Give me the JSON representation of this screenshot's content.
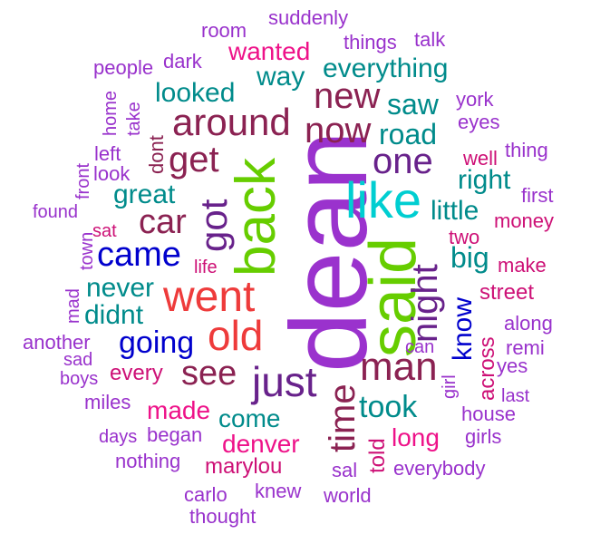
{
  "words": [
    {
      "text": "dean",
      "color": "#9a32cd",
      "rotated": true
    },
    {
      "text": "said",
      "color": "#66cd00",
      "rotated": true
    },
    {
      "text": "back",
      "color": "#66cd00",
      "rotated": true
    },
    {
      "text": "like",
      "color": "#00ced1"
    },
    {
      "text": "went",
      "color": "#ee3b3b"
    },
    {
      "text": "night",
      "color": "#68228b",
      "rotated": true
    },
    {
      "text": "around",
      "color": "#8b2252"
    },
    {
      "text": "time",
      "color": "#8b2252",
      "rotated": true
    },
    {
      "text": "old",
      "color": "#ee3b3b"
    },
    {
      "text": "got",
      "color": "#68228b",
      "rotated": true
    },
    {
      "text": "just",
      "color": "#68228b"
    },
    {
      "text": "man",
      "color": "#8b2252"
    },
    {
      "text": "new",
      "color": "#8b2252"
    },
    {
      "text": "now",
      "color": "#8b2252"
    },
    {
      "text": "one",
      "color": "#68228b"
    },
    {
      "text": "get",
      "color": "#8b2252"
    },
    {
      "text": "car",
      "color": "#8b2252"
    },
    {
      "text": "see",
      "color": "#8b2252"
    },
    {
      "text": "came",
      "color": "#0000cd"
    },
    {
      "text": "going",
      "color": "#0000cd"
    },
    {
      "text": "road",
      "color": "#008b8b"
    },
    {
      "text": "took",
      "color": "#008b8b"
    },
    {
      "text": "great",
      "color": "#008b8b"
    },
    {
      "text": "little",
      "color": "#008b8b"
    },
    {
      "text": "right",
      "color": "#008b8b"
    },
    {
      "text": "big",
      "color": "#008b8b"
    },
    {
      "text": "know",
      "color": "#0000cd",
      "rotated": true
    },
    {
      "text": "looked",
      "color": "#008b8b"
    },
    {
      "text": "way",
      "color": "#008b8b"
    },
    {
      "text": "saw",
      "color": "#008b8b"
    },
    {
      "text": "everything",
      "color": "#008b8b"
    },
    {
      "text": "never",
      "color": "#008b8b"
    },
    {
      "text": "didnt",
      "color": "#008b8b"
    },
    {
      "text": "come",
      "color": "#008b8b"
    },
    {
      "text": "wanted",
      "color": "#ee1289"
    },
    {
      "text": "denver",
      "color": "#ee1289"
    },
    {
      "text": "long",
      "color": "#ee1289"
    },
    {
      "text": "made",
      "color": "#ee1289"
    },
    {
      "text": "marylou",
      "color": "#cd1076"
    },
    {
      "text": "every",
      "color": "#cd1076"
    },
    {
      "text": "street",
      "color": "#cd1076"
    },
    {
      "text": "across",
      "color": "#cd1076",
      "rotated": true
    },
    {
      "text": "money",
      "color": "#cd1076"
    },
    {
      "text": "make",
      "color": "#cd1076"
    },
    {
      "text": "well",
      "color": "#cd1076"
    },
    {
      "text": "two",
      "color": "#cd1076"
    },
    {
      "text": "life",
      "color": "#cd1076"
    },
    {
      "text": "sat",
      "color": "#cd1076"
    },
    {
      "text": "told",
      "color": "#cd1076",
      "rotated": true
    },
    {
      "text": "things",
      "color": "#9932cc"
    },
    {
      "text": "suddenly",
      "color": "#9932cc"
    },
    {
      "text": "room",
      "color": "#9932cc"
    },
    {
      "text": "talk",
      "color": "#9932cc"
    },
    {
      "text": "dark",
      "color": "#9932cc"
    },
    {
      "text": "people",
      "color": "#9932cc"
    },
    {
      "text": "york",
      "color": "#9932cc"
    },
    {
      "text": "eyes",
      "color": "#9932cc"
    },
    {
      "text": "thing",
      "color": "#9932cc"
    },
    {
      "text": "first",
      "color": "#9932cc"
    },
    {
      "text": "along",
      "color": "#9932cc"
    },
    {
      "text": "remi",
      "color": "#9932cc"
    },
    {
      "text": "yes",
      "color": "#9932cc"
    },
    {
      "text": "last",
      "color": "#9932cc"
    },
    {
      "text": "house",
      "color": "#9932cc"
    },
    {
      "text": "girls",
      "color": "#9932cc"
    },
    {
      "text": "girl",
      "color": "#9932cc",
      "rotated": true
    },
    {
      "text": "can",
      "color": "#9932cc"
    },
    {
      "text": "everybody",
      "color": "#9932cc"
    },
    {
      "text": "sal",
      "color": "#9932cc"
    },
    {
      "text": "world",
      "color": "#9932cc"
    },
    {
      "text": "knew",
      "color": "#9932cc"
    },
    {
      "text": "carlo",
      "color": "#9932cc"
    },
    {
      "text": "thought",
      "color": "#9932cc"
    },
    {
      "text": "nothing",
      "color": "#9932cc"
    },
    {
      "text": "began",
      "color": "#9932cc"
    },
    {
      "text": "days",
      "color": "#9932cc"
    },
    {
      "text": "miles",
      "color": "#9932cc"
    },
    {
      "text": "boys",
      "color": "#9932cc"
    },
    {
      "text": "sad",
      "color": "#9932cc"
    },
    {
      "text": "another",
      "color": "#9932cc"
    },
    {
      "text": "mad",
      "color": "#9932cc",
      "rotated": true
    },
    {
      "text": "found",
      "color": "#9932cc"
    },
    {
      "text": "town",
      "color": "#9932cc",
      "rotated": true
    },
    {
      "text": "front",
      "color": "#9932cc",
      "rotated": true
    },
    {
      "text": "look",
      "color": "#9932cc"
    },
    {
      "text": "left",
      "color": "#9932cc"
    },
    {
      "text": "home",
      "color": "#9932cc",
      "rotated": true
    },
    {
      "text": "take",
      "color": "#9932cc",
      "rotated": true
    },
    {
      "text": "dont",
      "color": "#8b2252",
      "rotated": true
    }
  ]
}
